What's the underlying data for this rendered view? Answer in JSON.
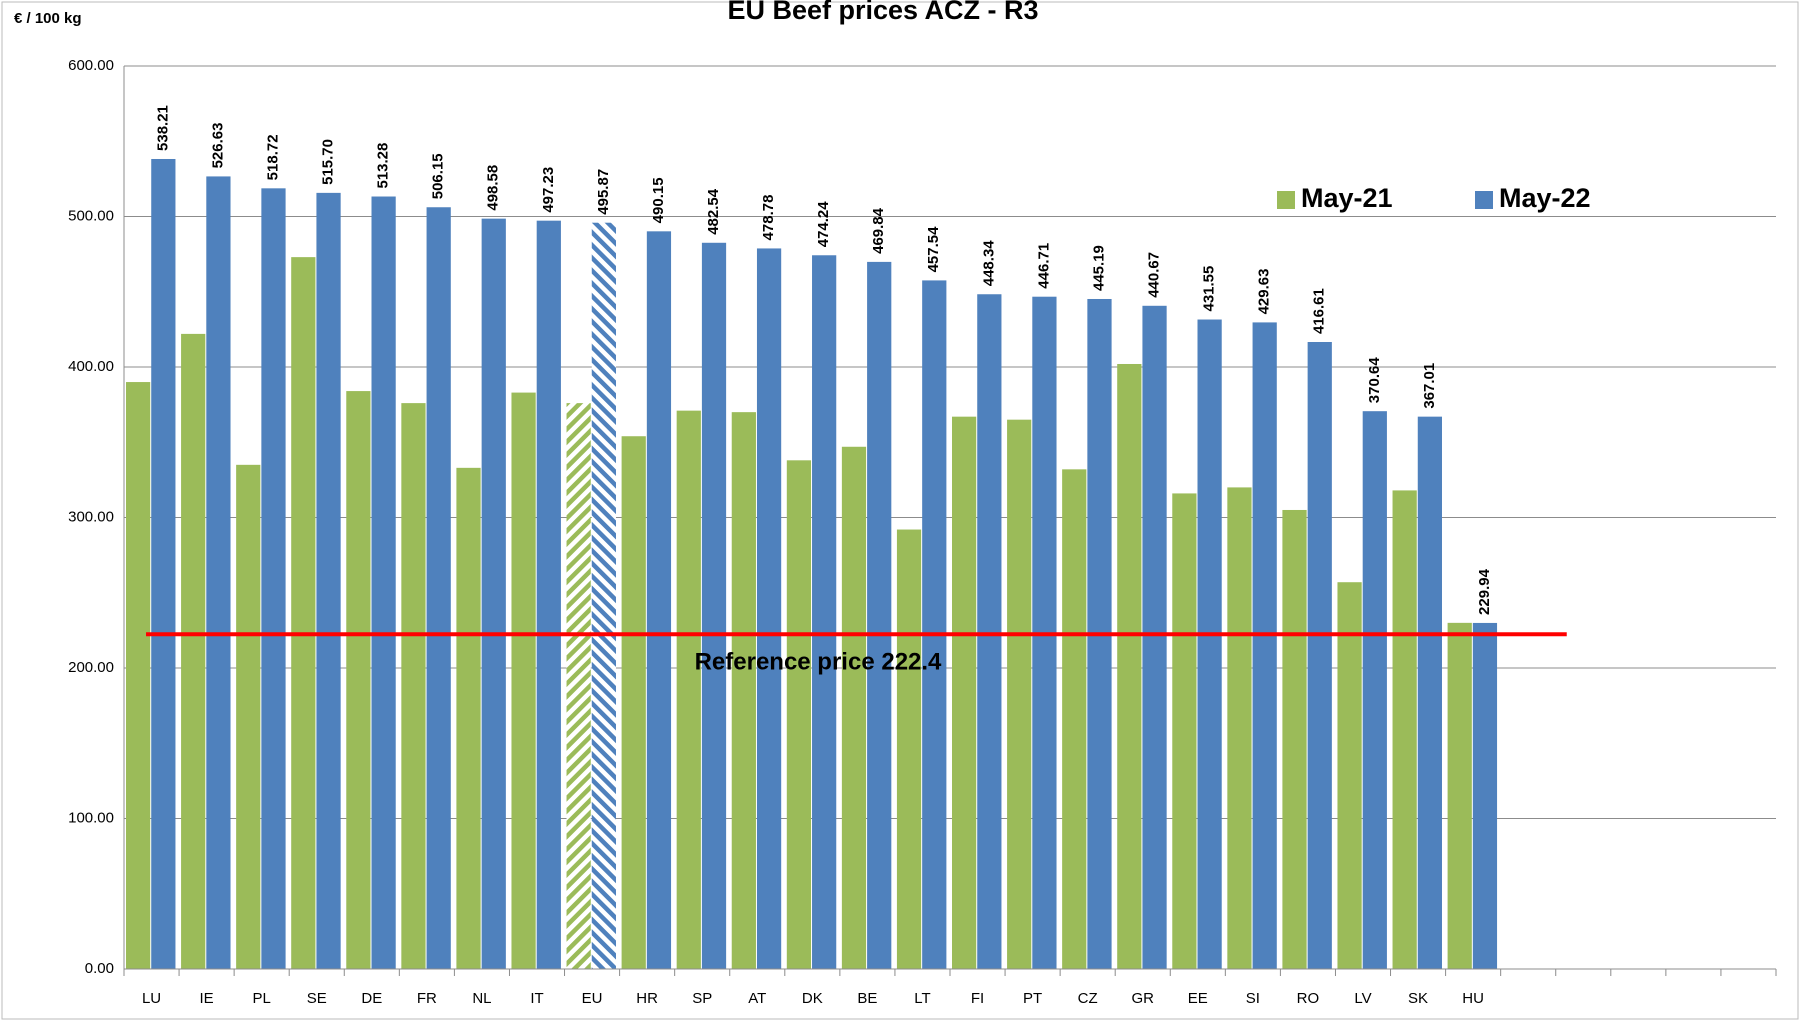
{
  "chart_data": {
    "type": "bar",
    "title": "EU Beef prices ACZ - R3",
    "y_label": "€ / 100 kg",
    "categories": [
      "LU",
      "IE",
      "PL",
      "SE",
      "DE",
      "FR",
      "NL",
      "IT",
      "EU",
      "HR",
      "SP",
      "AT",
      "DK",
      "BE",
      "LT",
      "FI",
      "PT",
      "CZ",
      "GR",
      "EE",
      "SI",
      "RO",
      "LV",
      "SK",
      "HU",
      null,
      null,
      null,
      null,
      null
    ],
    "series": [
      {
        "name": "May-21",
        "color": "#9bbb59",
        "values": [
          390,
          422,
          335,
          473,
          384,
          376,
          333,
          383,
          376,
          354,
          371,
          370,
          338,
          347,
          292,
          367,
          365,
          332,
          402,
          316,
          320,
          305,
          257,
          318,
          230,
          null,
          null,
          null,
          null,
          null
        ]
      },
      {
        "name": "May-22",
        "color": "#4f81bd",
        "values": [
          538.21,
          526.63,
          518.72,
          515.7,
          513.28,
          506.15,
          498.58,
          497.23,
          495.87,
          490.15,
          482.54,
          478.78,
          474.24,
          469.84,
          457.54,
          448.34,
          446.71,
          445.19,
          440.67,
          431.55,
          429.63,
          416.61,
          370.64,
          367.01,
          229.94,
          null,
          null,
          null,
          null,
          null
        ],
        "value_labels": [
          "538.21",
          "526.63",
          "518.72",
          "515.70",
          "513.28",
          "506.15",
          "498.58",
          "497.23",
          "495.87",
          "490.15",
          "482.54",
          "478.78",
          "474.24",
          "469.84",
          "457.54",
          "448.34",
          "446.71",
          "445.19",
          "440.67",
          "431.55",
          "429.63",
          "416.61",
          "370.64",
          "367.01",
          "229.94",
          null,
          null,
          null,
          null,
          null
        ]
      }
    ],
    "hatched_index": 8,
    "reference": {
      "value": 222.4,
      "label": "Reference price 222.4",
      "color": "#ff0000"
    },
    "ylim": [
      0,
      600
    ],
    "yticks": [
      {
        "value": 0,
        "label": "0.00"
      },
      {
        "value": 100,
        "label": "100.00"
      },
      {
        "value": 200,
        "label": "200.00"
      },
      {
        "value": 300,
        "label": "300.00"
      },
      {
        "value": 400,
        "label": "400.00"
      },
      {
        "value": 500,
        "label": "500.00"
      },
      {
        "value": 600,
        "label": "600.00"
      }
    ],
    "grid": true,
    "legend": "upper right"
  }
}
